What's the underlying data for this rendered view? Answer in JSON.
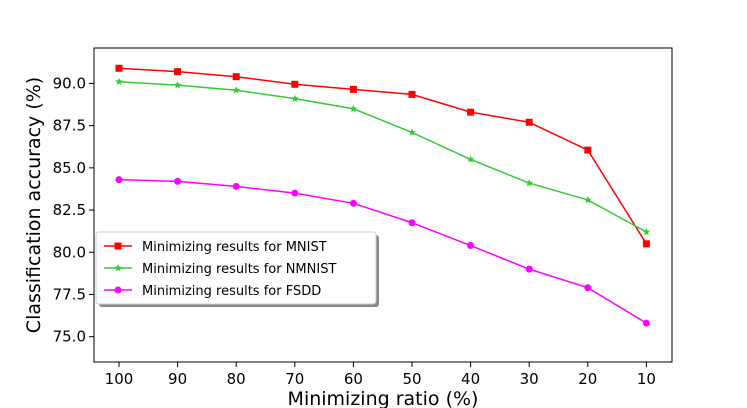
{
  "chart_data": {
    "type": "line",
    "title": "",
    "xlabel": "Minimizing ratio (%)",
    "ylabel": "Classification accuracy (%)",
    "categories": [
      "100",
      "90",
      "80",
      "70",
      "60",
      "50",
      "40",
      "30",
      "20",
      "10"
    ],
    "ylim": [
      73.5,
      92.1
    ],
    "yticks": [
      "75.0",
      "77.5",
      "80.0",
      "82.5",
      "85.0",
      "87.5",
      "90.0"
    ],
    "grid": false,
    "legend_position": "lower-left",
    "series": [
      {
        "name": "Minimizing results for MNIST",
        "color": "#ff0000",
        "marker": "square",
        "values": [
          90.9,
          90.7,
          90.4,
          89.95,
          89.65,
          89.35,
          88.3,
          87.7,
          86.05,
          80.5
        ]
      },
      {
        "name": "Minimizing results for NMNIST",
        "color": "#33cc33",
        "marker": "star",
        "values": [
          90.1,
          89.9,
          89.6,
          89.1,
          88.5,
          87.1,
          85.5,
          84.1,
          83.1,
          81.2
        ]
      },
      {
        "name": "Minimizing results for FSDD",
        "color": "#ff00ff",
        "marker": "circle",
        "values": [
          84.3,
          84.2,
          83.9,
          83.5,
          82.9,
          81.75,
          80.4,
          79.0,
          77.9,
          75.8
        ]
      }
    ]
  }
}
